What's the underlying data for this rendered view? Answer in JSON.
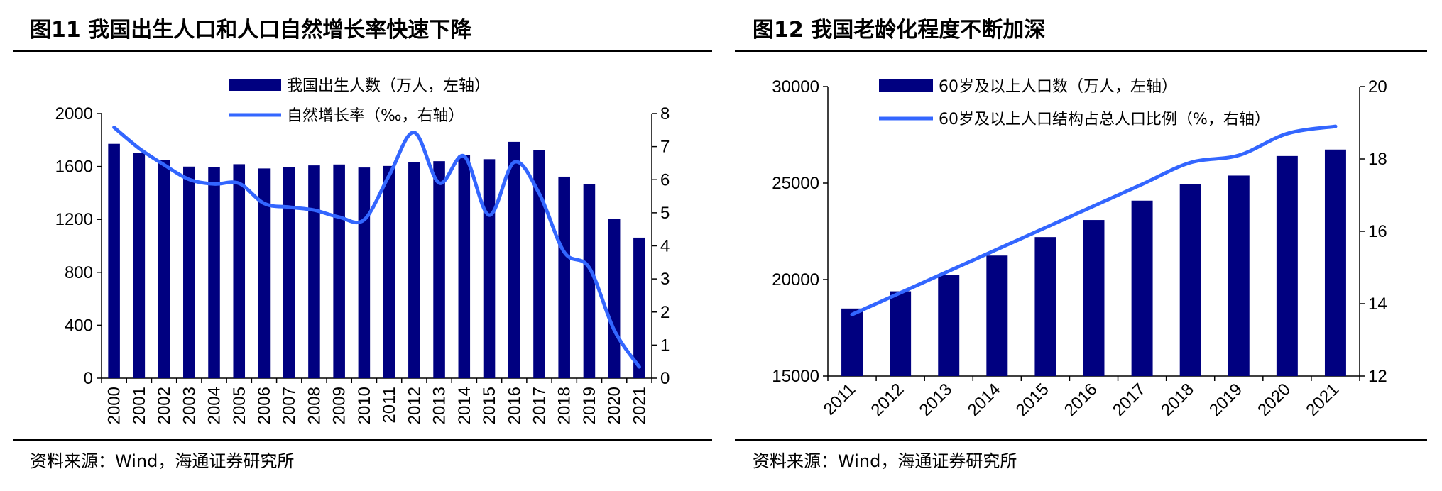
{
  "panels": [
    {
      "title": "图11 我国出生人口和人口自然增长率快速下降",
      "source": "资料来源：Wind，海通证券研究所"
    },
    {
      "title": "图12 我国老龄化程度不断加深",
      "source": "资料来源：Wind，海通证券研究所"
    }
  ],
  "chart_data": [
    {
      "type": "bar+line",
      "categories": [
        "2000",
        "2001",
        "2002",
        "2003",
        "2004",
        "2005",
        "2006",
        "2007",
        "2008",
        "2009",
        "2010",
        "2011",
        "2012",
        "2013",
        "2014",
        "2015",
        "2016",
        "2017",
        "2018",
        "2019",
        "2020",
        "2021"
      ],
      "series": [
        {
          "name": "我国出生人数（万人，左轴）",
          "kind": "bar",
          "axis": "left",
          "color": "#000080",
          "values": [
            1771,
            1702,
            1647,
            1599,
            1593,
            1617,
            1585,
            1595,
            1608,
            1615,
            1592,
            1604,
            1635,
            1640,
            1687,
            1655,
            1786,
            1723,
            1523,
            1465,
            1202,
            1062
          ]
        },
        {
          "name": "自然增长率（‰，右轴）",
          "kind": "line",
          "axis": "right",
          "color": "#3366ff",
          "values": [
            7.58,
            6.95,
            6.45,
            6.01,
            5.87,
            5.89,
            5.28,
            5.17,
            5.08,
            4.87,
            4.79,
            6.13,
            7.43,
            5.9,
            6.71,
            4.93,
            6.53,
            5.58,
            3.81,
            3.34,
            1.45,
            0.34
          ]
        }
      ],
      "left_axis": {
        "min": 0,
        "max": 2000,
        "ticks": [
          0,
          400,
          800,
          1200,
          1600,
          2000
        ]
      },
      "right_axis": {
        "min": 0,
        "max": 8,
        "ticks": [
          0,
          1,
          2,
          3,
          4,
          5,
          6,
          7,
          8
        ]
      },
      "grid": false,
      "legend_position": "top-center"
    },
    {
      "type": "bar+line",
      "categories": [
        "2011",
        "2012",
        "2013",
        "2014",
        "2015",
        "2016",
        "2017",
        "2018",
        "2019",
        "2020",
        "2021"
      ],
      "series": [
        {
          "name": "60岁及以上人口数（万人，左轴）",
          "kind": "bar",
          "axis": "left",
          "color": "#000080",
          "values": [
            18499,
            19390,
            20243,
            21242,
            22200,
            23086,
            24090,
            24949,
            25388,
            26402,
            26736
          ]
        },
        {
          "name": "60岁及以上人口结构占总人口比例（%，右轴）",
          "kind": "line",
          "axis": "right",
          "color": "#3366ff",
          "values": [
            13.7,
            14.3,
            14.9,
            15.5,
            16.1,
            16.7,
            17.3,
            17.9,
            18.1,
            18.7,
            18.9
          ]
        }
      ],
      "left_axis": {
        "min": 15000,
        "max": 30000,
        "ticks": [
          15000,
          20000,
          25000,
          30000
        ]
      },
      "right_axis": {
        "min": 12,
        "max": 20,
        "ticks": [
          12,
          14,
          16,
          18,
          20
        ]
      },
      "grid": false,
      "legend_position": "top-left"
    }
  ]
}
